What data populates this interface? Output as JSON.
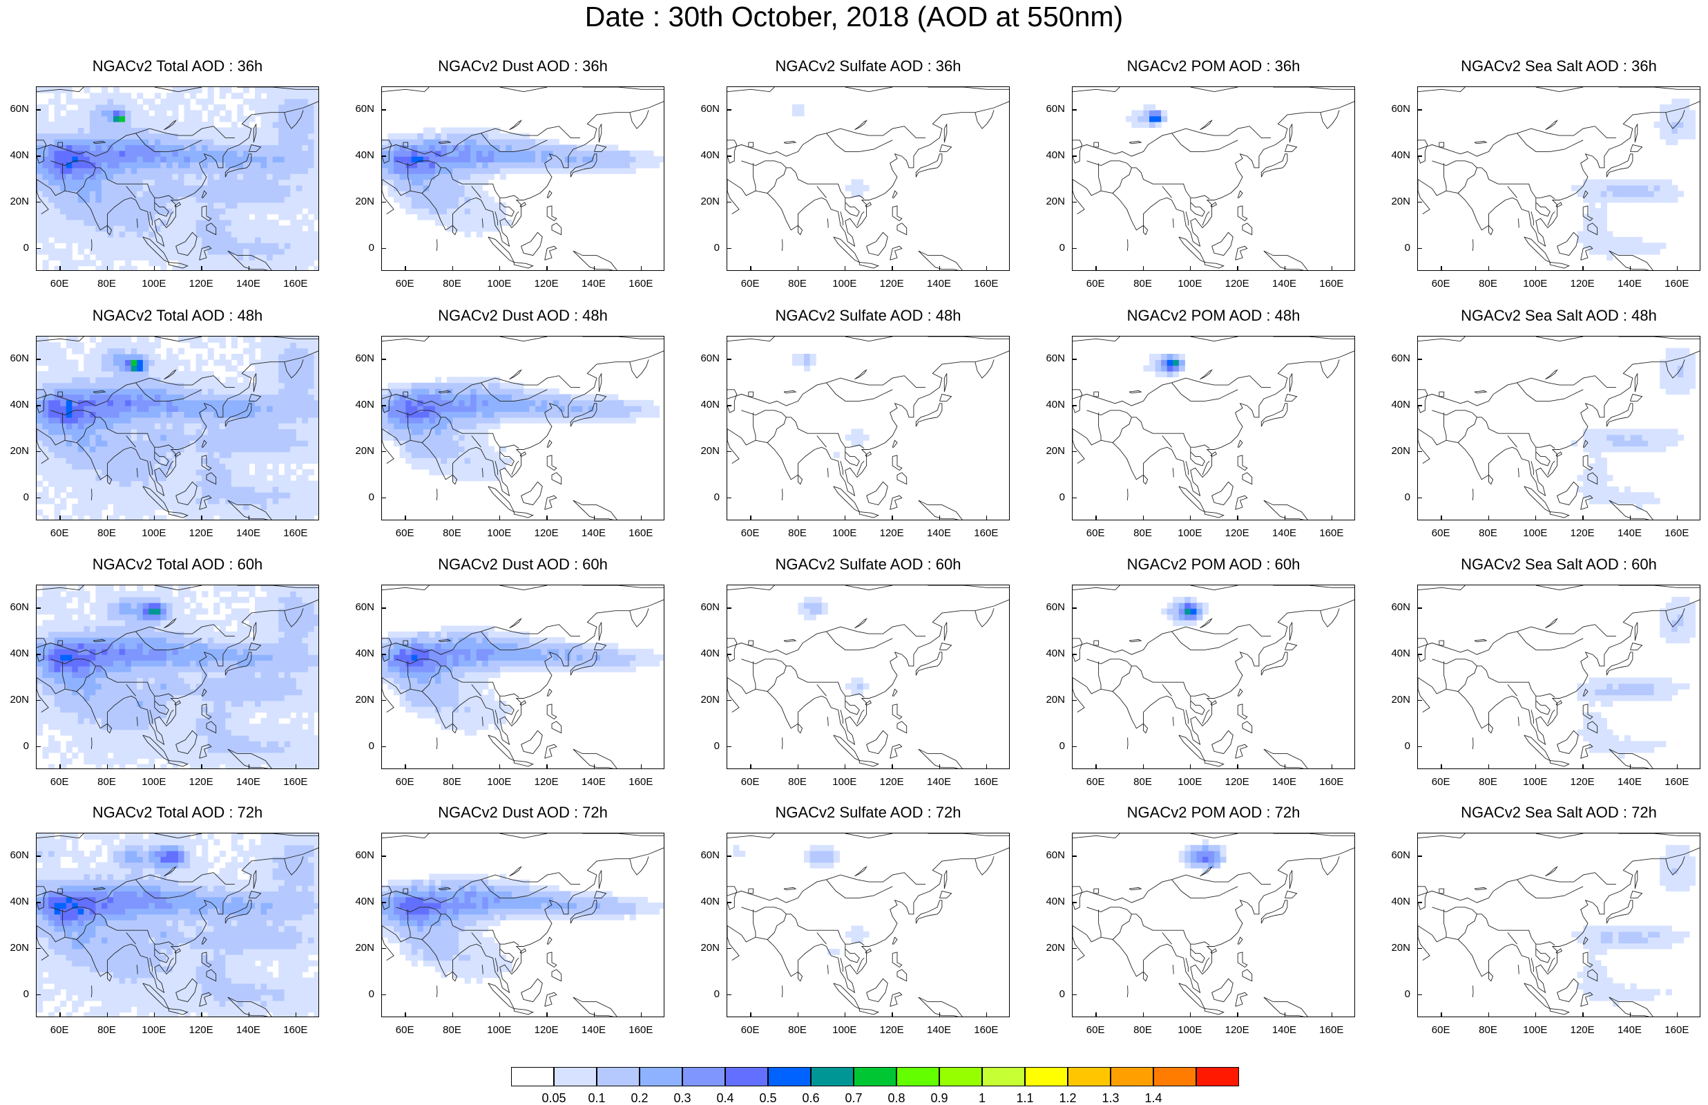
{
  "title": "Date : 30th October, 2018 (AOD at 550nm)",
  "x_tick_labels": [
    "60E",
    "80E",
    "100E",
    "120E",
    "140E",
    "160E"
  ],
  "x_tick_values": [
    60,
    80,
    100,
    120,
    140,
    160
  ],
  "y_tick_labels": [
    "60N",
    "40N",
    "20N",
    "0"
  ],
  "y_tick_values": [
    60,
    40,
    20,
    0
  ],
  "map_extent": {
    "lon": [
      50,
      170
    ],
    "lat": [
      -10,
      70
    ]
  },
  "colorbar": {
    "labels": [
      "0.05",
      "0.1",
      "0.2",
      "0.3",
      "0.4",
      "0.5",
      "0.6",
      "0.7",
      "0.8",
      "0.9",
      "1",
      "1.1",
      "1.2",
      "1.3",
      "1.4"
    ],
    "colors": [
      "#ffffff",
      "#d6e2ff",
      "#b5c9ff",
      "#8eb2ff",
      "#7f96ff",
      "#6370ff",
      "#0063ff",
      "#009696",
      "#00c633",
      "#63ff00",
      "#96ff00",
      "#c6ff33",
      "#ffff00",
      "#ffc600",
      "#ffa000",
      "#ff7c00",
      "#ff1900"
    ]
  },
  "panels": [
    [
      {
        "title": "NGACv2 Total AOD : 36h",
        "species": "total",
        "hour": 36
      },
      {
        "title": "NGACv2 Dust AOD : 36h",
        "species": "dust",
        "hour": 36
      },
      {
        "title": "NGACv2 Sulfate AOD : 36h",
        "species": "sulfate",
        "hour": 36
      },
      {
        "title": "NGACv2 POM AOD : 36h",
        "species": "pom",
        "hour": 36
      },
      {
        "title": "NGACv2 Sea Salt AOD : 36h",
        "species": "seasalt",
        "hour": 36
      }
    ],
    [
      {
        "title": "NGACv2 Total AOD : 48h",
        "species": "total",
        "hour": 48
      },
      {
        "title": "NGACv2 Dust AOD : 48h",
        "species": "dust",
        "hour": 48
      },
      {
        "title": "NGACv2 Sulfate AOD : 48h",
        "species": "sulfate",
        "hour": 48
      },
      {
        "title": "NGACv2 POM AOD : 48h",
        "species": "pom",
        "hour": 48
      },
      {
        "title": "NGACv2 Sea Salt AOD : 48h",
        "species": "seasalt",
        "hour": 48
      }
    ],
    [
      {
        "title": "NGACv2 Total AOD : 60h",
        "species": "total",
        "hour": 60
      },
      {
        "title": "NGACv2 Dust AOD : 60h",
        "species": "dust",
        "hour": 60
      },
      {
        "title": "NGACv2 Sulfate AOD : 60h",
        "species": "sulfate",
        "hour": 60
      },
      {
        "title": "NGACv2 POM AOD : 60h",
        "species": "pom",
        "hour": 60
      },
      {
        "title": "NGACv2 Sea Salt AOD : 60h",
        "species": "seasalt",
        "hour": 60
      }
    ],
    [
      {
        "title": "NGACv2 Total AOD : 72h",
        "species": "total",
        "hour": 72
      },
      {
        "title": "NGACv2 Dust AOD : 72h",
        "species": "dust",
        "hour": 72
      },
      {
        "title": "NGACv2 Sulfate AOD : 72h",
        "species": "sulfate",
        "hour": 72
      },
      {
        "title": "NGACv2 POM AOD : 72h",
        "species": "pom",
        "hour": 72
      },
      {
        "title": "NGACv2 Sea Salt  AOD : 72h",
        "species": "seasalt",
        "hour": 72
      }
    ]
  ]
}
